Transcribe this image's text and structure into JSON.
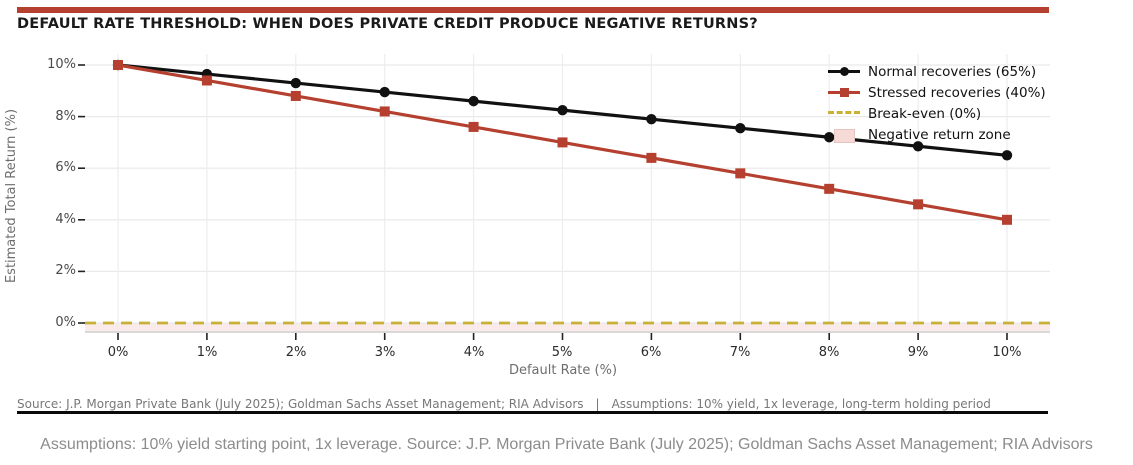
{
  "header": {
    "title": "DEFAULT RATE THRESHOLD: WHEN DOES PRIVATE CREDIT PRODUCE NEGATIVE RETURNS?",
    "accent_color": "#b5402f"
  },
  "chart_data": {
    "type": "line",
    "title": "DEFAULT RATE THRESHOLD: WHEN DOES PRIVATE CREDIT PRODUCE NEGATIVE RETURNS?",
    "xlabel": "Default Rate (%)",
    "ylabel": "Estimated Total Return (%)",
    "x": [
      0,
      1,
      2,
      3,
      4,
      5,
      6,
      7,
      8,
      9,
      10
    ],
    "x_tick_labels": [
      "0%",
      "1%",
      "2%",
      "3%",
      "4%",
      "5%",
      "6%",
      "7%",
      "8%",
      "9%",
      "10%"
    ],
    "y_ticks": [
      10,
      8,
      6,
      4,
      2,
      0
    ],
    "y_tick_labels": [
      "10%",
      "8%",
      "6%",
      "4%",
      "2%",
      "0%"
    ],
    "ylim": [
      -0.4,
      10.4
    ],
    "grid": true,
    "legend_position": "upper right",
    "series": [
      {
        "name": "Normal recoveries (65%)",
        "color": "#111111",
        "marker": "circle",
        "values": [
          10.0,
          9.65,
          9.3,
          8.95,
          8.6,
          8.25,
          7.9,
          7.55,
          7.2,
          6.85,
          6.5
        ]
      },
      {
        "name": "Stressed recoveries (40%)",
        "color": "#b5402f",
        "marker": "square",
        "values": [
          10.0,
          9.4,
          8.8,
          8.2,
          7.6,
          7.0,
          6.4,
          5.8,
          5.2,
          4.6,
          4.0
        ]
      }
    ],
    "break_even": {
      "label": "Break-even (0%)",
      "value": 0,
      "color": "#c9b037",
      "style": "dashed"
    },
    "negative_zone": {
      "label": "Negative return zone",
      "color": "#f5dad8"
    }
  },
  "footnote": {
    "source": "Source: J.P. Morgan Private Bank (July 2025); Goldman Sachs Asset Management; RIA Advisors",
    "separator": "|",
    "assumptions": "Assumptions: 10% yield, 1x leverage, long-term holding period"
  },
  "caption": "Assumptions: 10% yield starting point, 1x leverage. Source: J.P. Morgan Private Bank (July 2025); Goldman Sachs Asset Management; RIA Advisors"
}
